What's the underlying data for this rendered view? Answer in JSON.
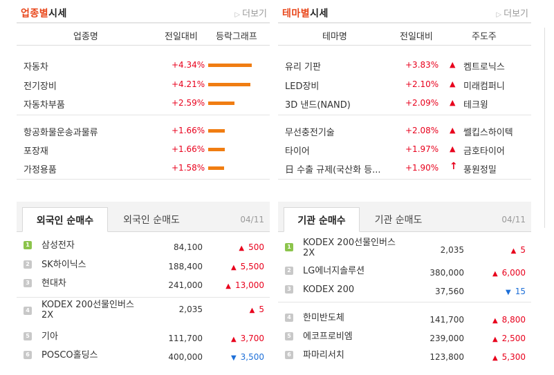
{
  "industry": {
    "title_accent": "업종별",
    "title_rest": "시세",
    "more_label": "더보기",
    "headers": [
      "업종명",
      "전일대비",
      "등락그래프"
    ],
    "rows": [
      {
        "name": "자동차",
        "rate": "+4.34%",
        "bar_pct": 4.34
      },
      {
        "name": "전기장비",
        "rate": "+4.21%",
        "bar_pct": 4.21
      },
      {
        "name": "자동차부품",
        "rate": "+2.59%",
        "bar_pct": 2.59
      },
      {
        "name": "항공화물운송과물류",
        "rate": "+1.66%",
        "bar_pct": 1.66
      },
      {
        "name": "포장재",
        "rate": "+1.66%",
        "bar_pct": 1.66
      },
      {
        "name": "가정용품",
        "rate": "+1.58%",
        "bar_pct": 1.58
      }
    ]
  },
  "theme": {
    "title_accent": "테마별",
    "title_rest": "시세",
    "more_label": "더보기",
    "headers": [
      "테마명",
      "전일대비",
      "주도주"
    ],
    "rows": [
      {
        "name": "유리 기판",
        "rate": "+3.83%",
        "icon": "up-triangle-icon",
        "lead": "켐트로닉스"
      },
      {
        "name": "LED장비",
        "rate": "+2.10%",
        "icon": "up-triangle-icon",
        "lead": "미래컴퍼니"
      },
      {
        "name": "3D 낸드(NAND)",
        "rate": "+2.09%",
        "icon": "up-triangle-icon",
        "lead": "테크윙"
      },
      {
        "name": "무선충전기술",
        "rate": "+2.08%",
        "icon": "up-triangle-icon",
        "lead": "쎌킵스하이텍"
      },
      {
        "name": "타이어",
        "rate": "+1.97%",
        "icon": "up-triangle-icon",
        "lead": "금호타이어"
      },
      {
        "name": "日 수출 규제(국산화 등...",
        "rate": "+1.90%",
        "icon": "upper-limit-arrow-icon",
        "lead": "풍원정밀"
      }
    ]
  },
  "foreign": {
    "tab_active": "외국인 순매수",
    "tab_inactive": "외국인 순매도",
    "date": "04/11",
    "rows": [
      {
        "rank": "1",
        "name": "삼성전자",
        "price": "84,100",
        "dir": "up",
        "change": "500"
      },
      {
        "rank": "2",
        "name": "SK하이닉스",
        "price": "188,400",
        "dir": "up",
        "change": "5,500"
      },
      {
        "rank": "3",
        "name": "현대차",
        "price": "241,000",
        "dir": "up",
        "change": "13,000"
      },
      {
        "rank": "4",
        "name": "KODEX 200선물인버스2X",
        "price": "2,035",
        "dir": "up",
        "change": "5"
      },
      {
        "rank": "5",
        "name": "기아",
        "price": "111,700",
        "dir": "up",
        "change": "3,700"
      },
      {
        "rank": "6",
        "name": "POSCO홀딩스",
        "price": "400,000",
        "dir": "down",
        "change": "3,500"
      }
    ]
  },
  "institution": {
    "tab_active": "기관 순매수",
    "tab_inactive": "기관 순매도",
    "date": "04/11",
    "rows": [
      {
        "rank": "1",
        "name": "KODEX 200선물인버스2X",
        "price": "2,035",
        "dir": "up",
        "change": "5"
      },
      {
        "rank": "2",
        "name": "LG에너지솔루션",
        "price": "380,000",
        "dir": "up",
        "change": "6,000"
      },
      {
        "rank": "3",
        "name": "KODEX 200",
        "price": "37,560",
        "dir": "down",
        "change": "15"
      },
      {
        "rank": "4",
        "name": "한미반도체",
        "price": "141,700",
        "dir": "up",
        "change": "8,800"
      },
      {
        "rank": "5",
        "name": "에코프로비엠",
        "price": "239,000",
        "dir": "up",
        "change": "2,500"
      },
      {
        "rank": "6",
        "name": "파마리서치",
        "price": "123,800",
        "dir": "up",
        "change": "5,300"
      }
    ]
  },
  "colors": {
    "accent": "#e8461a",
    "up": "#e8001c",
    "down": "#1d6fd8",
    "bar": "#f07d12"
  }
}
